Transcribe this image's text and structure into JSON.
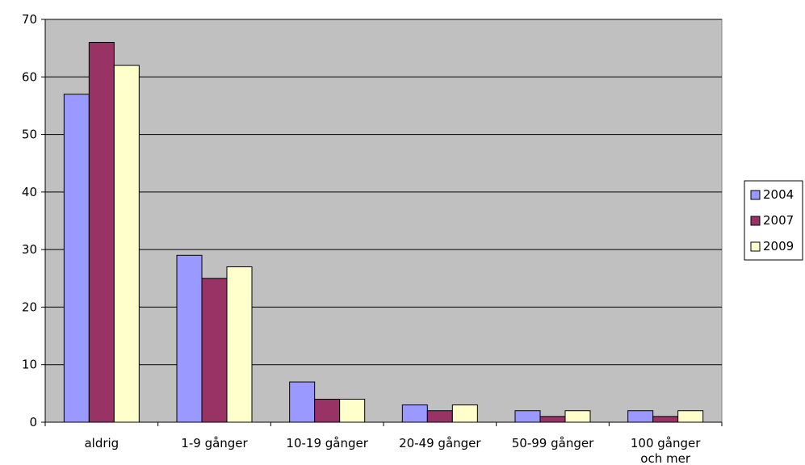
{
  "chart_data": {
    "type": "bar",
    "categories": [
      [
        "aldrig"
      ],
      [
        "1-9 gånger"
      ],
      [
        "10-19 gånger"
      ],
      [
        "20-49 gånger"
      ],
      [
        "50-99 gånger"
      ],
      [
        "100 gånger",
        "och mer"
      ]
    ],
    "series": [
      {
        "name": "2004",
        "color": "#9999ff",
        "values": [
          57,
          29,
          7,
          3,
          2,
          2
        ]
      },
      {
        "name": "2007",
        "color": "#993366",
        "values": [
          66,
          25,
          4,
          2,
          1,
          1
        ]
      },
      {
        "name": "2009",
        "color": "#ffffcc",
        "values": [
          62,
          27,
          4,
          3,
          2,
          2
        ]
      }
    ],
    "ylim": [
      0,
      70
    ],
    "yticks": [
      0,
      10,
      20,
      30,
      40,
      50,
      60,
      70
    ],
    "grid": true,
    "plot_background": "#c0c0c0",
    "legend_position": "right"
  }
}
